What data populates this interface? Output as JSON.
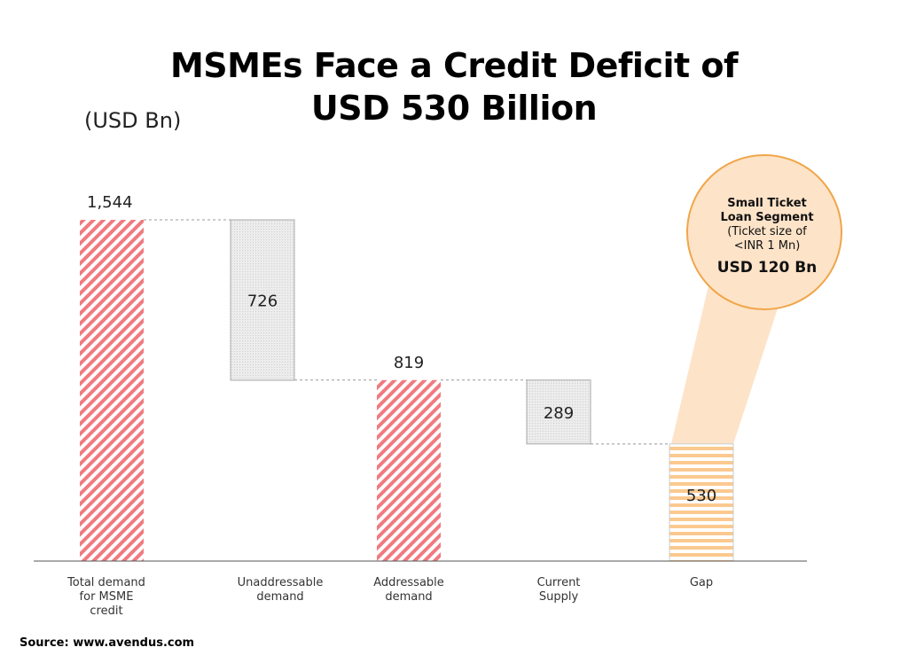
{
  "title_line1": "MSMEs Face a Credit Deficit of",
  "title_line2": "USD 530 Billion",
  "unit_label": "(USD Bn)",
  "source": "Source: www.avendus.com",
  "callout": {
    "line1": "Small Ticket",
    "line2": "Loan Segment",
    "line3": "(Ticket size of",
    "line4": "<INR 1 Mn)",
    "value": "USD 120 Bn",
    "fill": "#fde3c8",
    "border": "#f0a64a"
  },
  "colors": {
    "total": "#f07a80",
    "decrease": "#d9d9d9",
    "gap": "#fbc98f"
  },
  "chart_data": {
    "type": "waterfall",
    "title": "MSMEs Face a Credit Deficit of USD 530 Billion",
    "ylabel": "(USD Bn)",
    "grid": false,
    "categories": [
      [
        "Total demand",
        "for MSME",
        "credit"
      ],
      [
        "Unaddressable",
        "demand"
      ],
      [
        "Addressable",
        "demand"
      ],
      [
        "Current",
        "Supply"
      ],
      [
        "Gap"
      ]
    ],
    "values": [
      1544,
      -726,
      819,
      -289,
      530
    ],
    "value_labels": [
      "1,544",
      "726",
      "819",
      "289",
      "530"
    ],
    "kinds": [
      "total",
      "decrease",
      "total",
      "decrease",
      "total"
    ]
  }
}
